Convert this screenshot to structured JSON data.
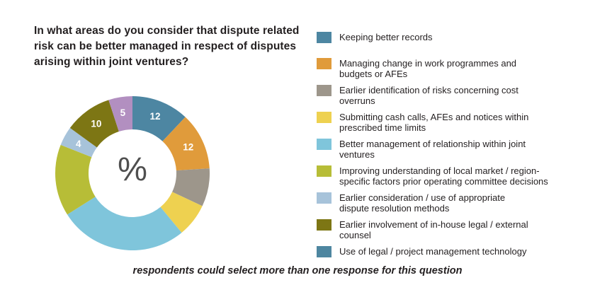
{
  "question": {
    "full": "In what areas do you consider that dispute related risk can be better managed in respect of disputes arising within joint ventures?",
    "lines": [
      "In what areas do you consider that dispute related",
      "risk can be better managed in respect of disputes",
      "arising within joint ventures?"
    ]
  },
  "footnote": "respondents could select more than one response for this question",
  "colors": {
    "text": "#231f20",
    "center_symbol": "#4f4f4f",
    "segment_value_labels": "#ffffff",
    "background": "#ffffff"
  },
  "chart_data": {
    "type": "pie",
    "subtype": "donut",
    "unit": "percent",
    "center_label": "%",
    "legend_position": "right",
    "start_angle_deg": 0,
    "values_total": 100,
    "segments": [
      {
        "label": "Keeping better records",
        "lines": [
          "Keeping better records"
        ],
        "value": 12,
        "value_shown": true,
        "color": "#4d86a2"
      },
      {
        "label": "Managing change in work programmes and budgets or AFEs",
        "lines": [
          "Managing change in work programmes and",
          "budgets or AFEs"
        ],
        "value": 12,
        "value_shown": true,
        "color": "#e09b3b"
      },
      {
        "label": "Earlier identification of risks concerning cost overruns",
        "lines": [
          "Earlier identification of risks concerning cost",
          "overruns"
        ],
        "value": 8,
        "value_shown": false,
        "color": "#9d968b"
      },
      {
        "label": "Submitting cash calls, AFEs and notices within prescribed time limits",
        "lines": [
          "Submitting cash calls, AFEs and notices within",
          "prescribed time limits"
        ],
        "value": 7,
        "value_shown": false,
        "color": "#eed150"
      },
      {
        "label": "Better management of relationship within joint ventures",
        "lines": [
          "Better management of relationship within joint",
          "ventures"
        ],
        "value": 27,
        "value_shown": false,
        "color": "#7fc5db"
      },
      {
        "label": "Improving understanding of local market / region-specific factors prior operating committee decisions",
        "lines": [
          "Improving understanding of local market / region-",
          "specific factors prior operating committee decisions"
        ],
        "value": 15,
        "value_shown": false,
        "color": "#b7bd37"
      },
      {
        "label": "Earlier consideration / use of appropriate dispute resolution methods",
        "lines": [
          "Earlier consideration / use of appropriate",
          "dispute resolution methods"
        ],
        "value": 4,
        "value_shown": true,
        "color": "#a7c3da"
      },
      {
        "label": "Earlier involvement of in-house legal / external counsel",
        "lines": [
          "Earlier involvement of in-house legal / external",
          "counsel"
        ],
        "value": 10,
        "value_shown": true,
        "color": "#7d7614"
      },
      {
        "label": "Use of legal / project management technology",
        "lines": [
          "Use of legal / project management technology"
        ],
        "value": 5,
        "value_shown": true,
        "color": "#b28fc0",
        "legend_color": "#4e86a0"
      }
    ]
  }
}
